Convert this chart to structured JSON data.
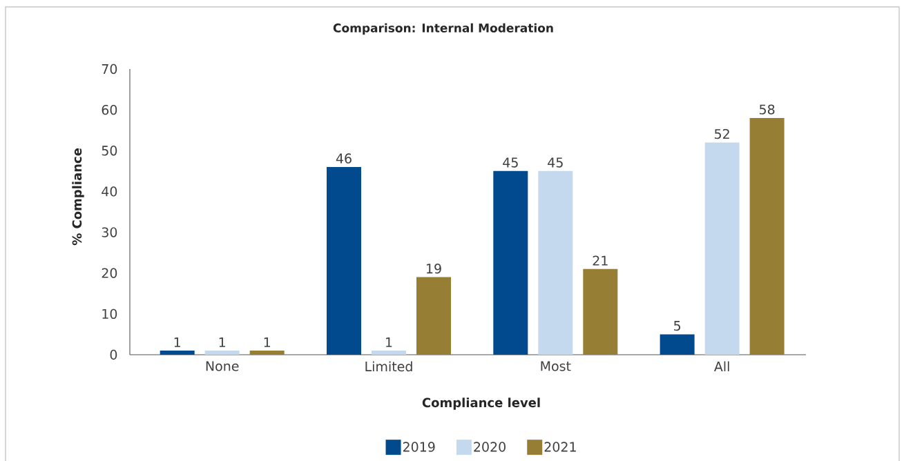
{
  "chart_data": {
    "type": "bar",
    "title": "Comparison: Internal Moderation",
    "xlabel": "Compliance level",
    "ylabel": "% Compliance",
    "categories": [
      "None",
      "Limited",
      "Most",
      "All"
    ],
    "series": [
      {
        "name": "2019",
        "color": "#004a8d",
        "values": [
          1,
          46,
          45,
          5
        ]
      },
      {
        "name": "2020",
        "color": "#c5d9ee",
        "values": [
          1,
          1,
          45,
          52
        ]
      },
      {
        "name": "2021",
        "color": "#967f35",
        "values": [
          1,
          19,
          21,
          58
        ]
      }
    ],
    "ylim": [
      0,
      70
    ],
    "yticks": [
      0,
      10,
      20,
      30,
      40,
      50,
      60,
      70
    ],
    "data_labels": true,
    "legend": "bottom"
  }
}
